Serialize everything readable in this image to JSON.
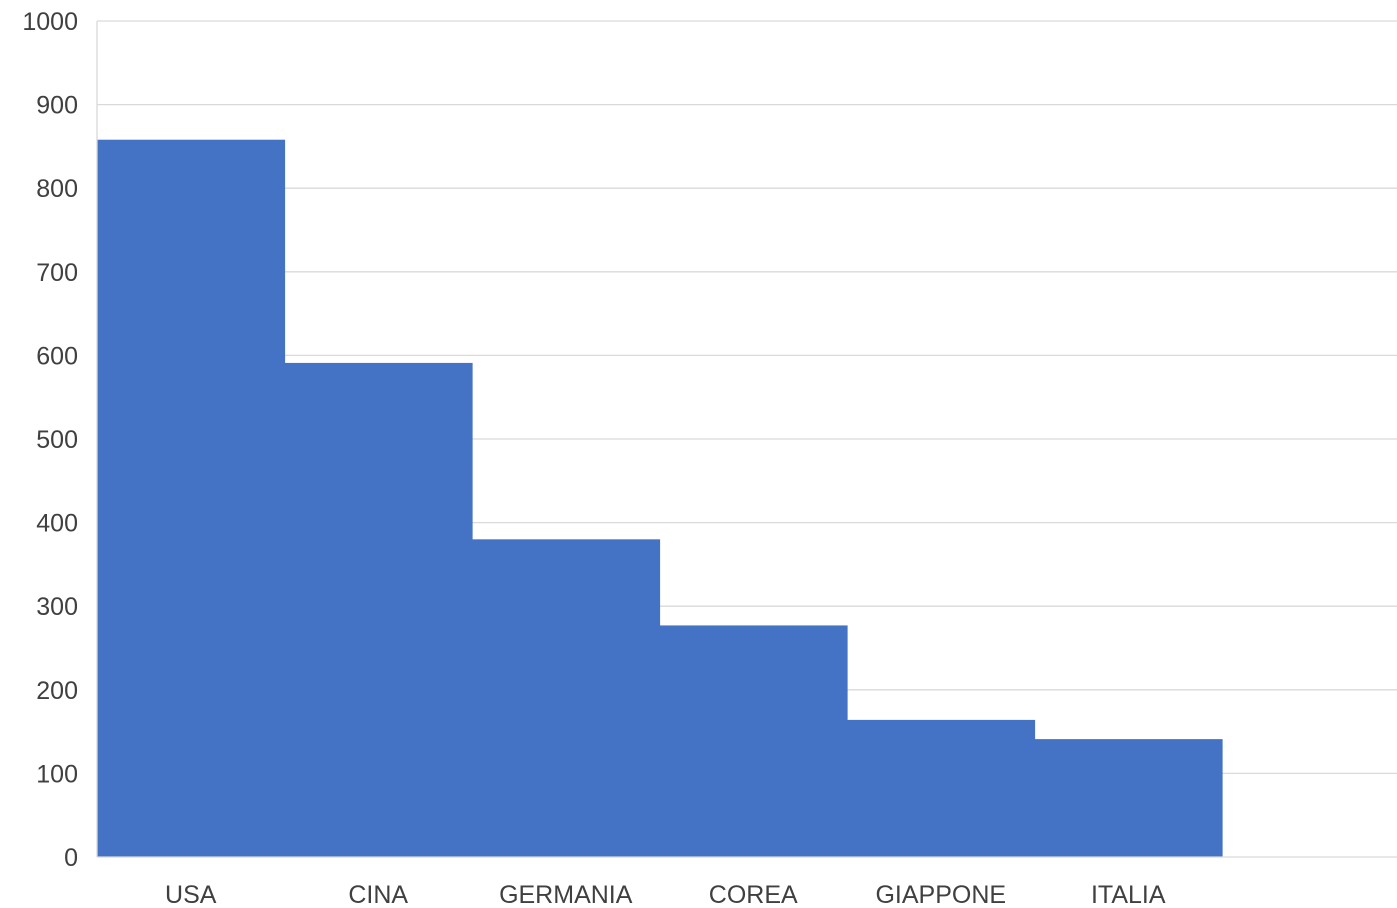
{
  "chart_data": {
    "type": "bar",
    "title": "",
    "xlabel": "",
    "ylabel": "",
    "categories": [
      "USA",
      "CINA",
      "GERMANIA",
      "COREA",
      "GIAPPONE",
      "ITALIA"
    ],
    "values": [
      858,
      591,
      380,
      277,
      164,
      141
    ],
    "ylim": [
      0,
      1000
    ],
    "yticks": [
      "0",
      "100",
      "200",
      "300",
      "400",
      "500",
      "600",
      "700",
      "800",
      "900",
      "1000"
    ],
    "grid": true,
    "legend": "none",
    "bar_color": "#4472c4",
    "bar_gap": 0
  }
}
